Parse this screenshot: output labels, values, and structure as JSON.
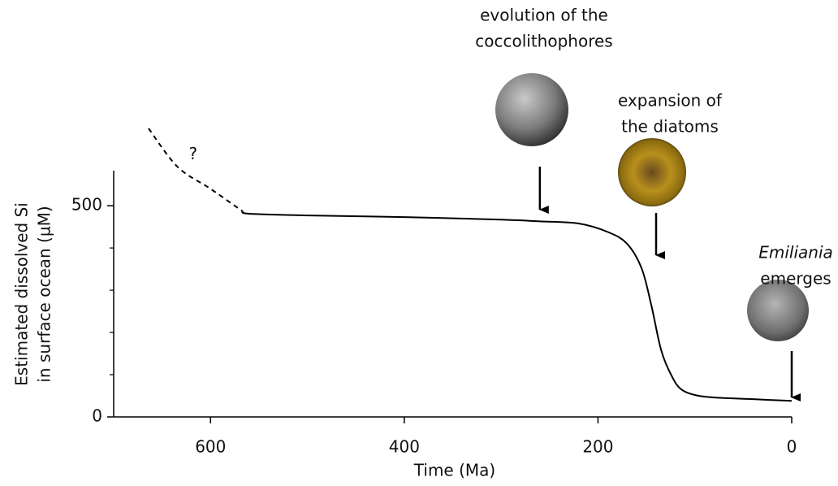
{
  "chart_data": {
    "type": "line",
    "x_label": "Time (Ma)",
    "y_label": [
      "Estimated dissolved Si",
      "in surface ocean (µM)"
    ],
    "xlim": [
      700,
      0
    ],
    "xticks": [
      600,
      400,
      200,
      0
    ],
    "ylim": [
      0,
      583
    ],
    "yticks": [
      0,
      500
    ],
    "yminor_ticks": [
      100,
      200,
      300,
      400
    ],
    "color": "#000000",
    "series": [
      {
        "style": "dashed",
        "x": [
          664,
          634,
          600,
          567
        ],
        "values": [
          683,
          592,
          540,
          487
        ]
      },
      {
        "style": "solid",
        "x": [
          567,
          560,
          500,
          400,
          300,
          260,
          220,
          190,
          170,
          155,
          145,
          135,
          125,
          115,
          100,
          80,
          40,
          0
        ],
        "values": [
          487,
          481,
          477,
          473,
          467,
          463,
          458,
          438,
          410,
          352,
          265,
          160,
          102,
          67,
          52,
          46,
          42,
          38
        ]
      }
    ],
    "annotations": [
      {
        "text": "?",
        "x": 618,
        "y": 621
      },
      {
        "lines": [
          "evolution of the",
          "coccolithophores"
        ],
        "italic": [
          false,
          false
        ],
        "x": 260
      },
      {
        "lines": [
          "expansion of",
          "the diatoms"
        ],
        "italic": [
          false,
          false
        ],
        "x": 140
      },
      {
        "lines": [
          "Emiliania",
          "emerges"
        ],
        "italic": [
          true,
          false
        ],
        "x": 0
      }
    ]
  }
}
